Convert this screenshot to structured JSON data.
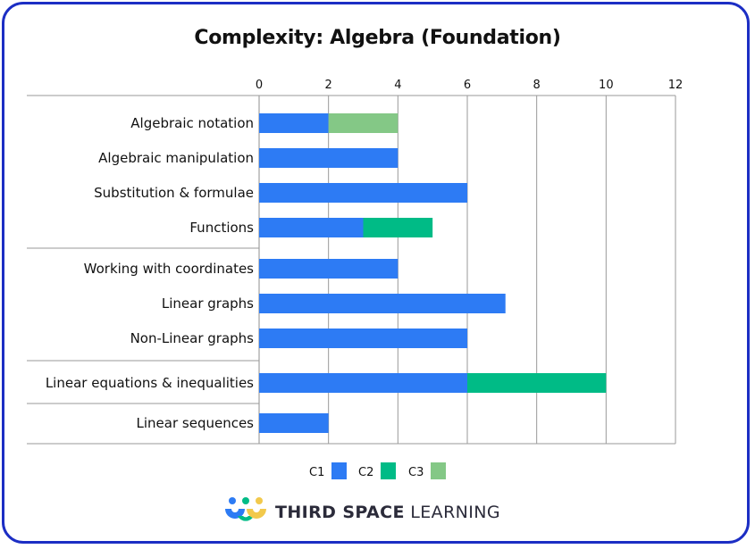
{
  "chart_data": {
    "type": "bar",
    "orientation": "horizontal",
    "stacked": true,
    "title": "Complexity: Algebra (Foundation)",
    "xlim": [
      0,
      12
    ],
    "x_ticks": [
      0,
      2,
      4,
      6,
      8,
      10,
      12
    ],
    "categories": [
      "Algebraic notation",
      "Algebraic manipulation",
      "Substitution & formulae",
      "Functions",
      "Working with coordinates",
      "Linear graphs",
      "Non-Linear graphs",
      "Linear equations & inequalities",
      "Linear sequences"
    ],
    "series": [
      {
        "name": "C1",
        "color": "#2d7bf4",
        "values": [
          2,
          4,
          6,
          3,
          4,
          7.1,
          6,
          6,
          2
        ]
      },
      {
        "name": "C2",
        "color": "#00bb86",
        "values": [
          0,
          0,
          0,
          2,
          0,
          0,
          0,
          4,
          0
        ]
      },
      {
        "name": "C3",
        "color": "#84c886",
        "values": [
          2,
          0,
          0,
          0,
          0,
          0,
          0,
          0,
          0
        ]
      }
    ],
    "grid": true,
    "legend_position": "bottom"
  },
  "brand": {
    "bold": "THIRD SPACE",
    "light": " LEARNING"
  }
}
